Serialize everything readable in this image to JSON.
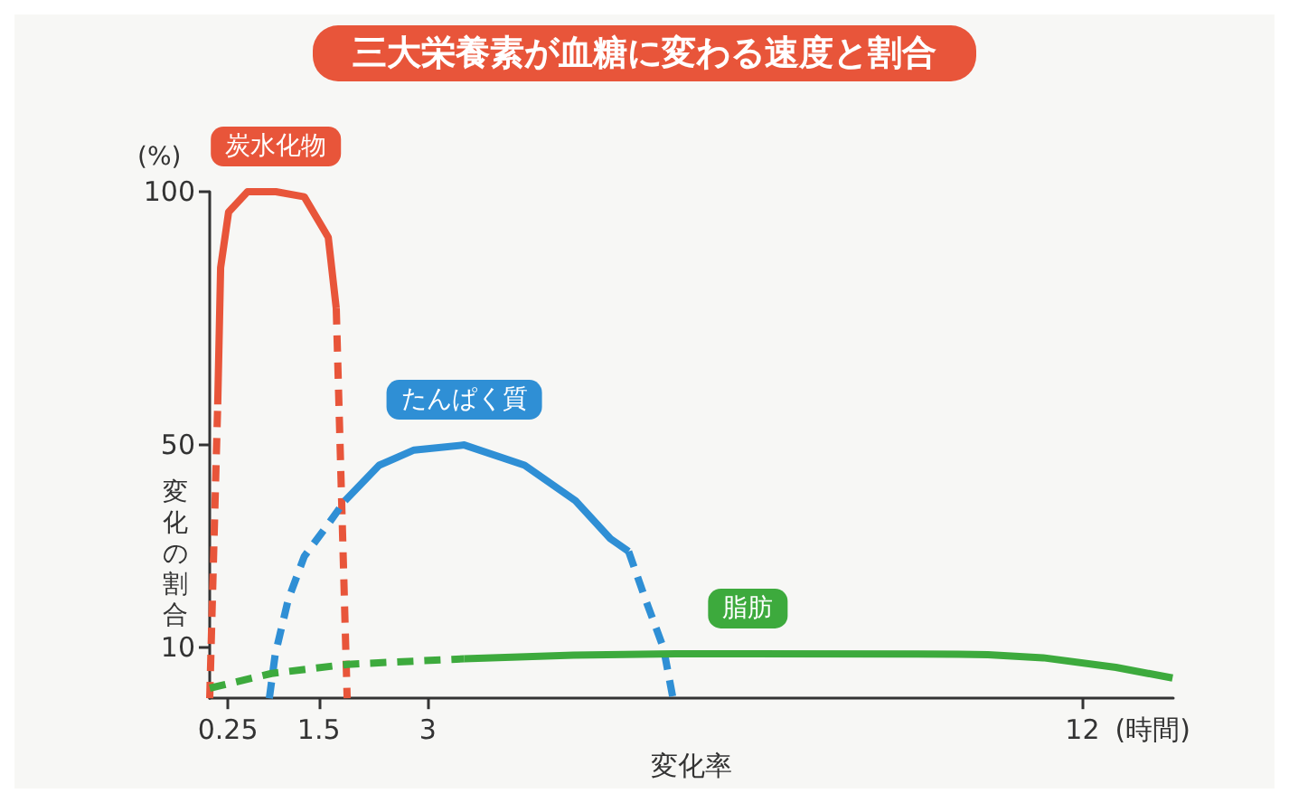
{
  "chart_data": {
    "type": "line",
    "title": "三大栄養素が血糖に変わる速度と割合",
    "xlabel": "変化率",
    "ylabel": "変化の割合",
    "annotations": [
      "(%)",
      "(時間)"
    ],
    "xlim": [
      0,
      13.25
    ],
    "xticks": [
      0.25,
      1.5,
      3,
      12
    ],
    "ylim": [
      0,
      100
    ],
    "yticks": [
      10,
      50,
      100
    ],
    "grid": false,
    "marker": "none",
    "series": [
      {
        "name": "炭水化物",
        "color": "#e8553a",
        "line_style": "solid",
        "x": [
          0.11,
          0.15,
          0.26,
          0.52,
          0.91,
          1.3,
          1.63,
          1.74
        ],
        "values": [
          58,
          85,
          96,
          100,
          100,
          99,
          91,
          77
        ]
      },
      {
        "color": "#e8553a",
        "line_style": "dashed",
        "x": [
          0,
          0.11
        ],
        "values": [
          0,
          58
        ]
      },
      {
        "color": "#e8553a",
        "line_style": "dashed",
        "x": [
          1.74,
          1.89
        ],
        "values": [
          77,
          0
        ]
      },
      {
        "name": "たんぱく質",
        "color": "#2f8fd5",
        "line_style": "solid",
        "x": [
          1.86,
          2.33,
          2.81,
          3.5,
          4.33,
          5.03,
          5.51,
          5.76
        ],
        "values": [
          39,
          46,
          49,
          50,
          46,
          39,
          31.5,
          29
        ]
      },
      {
        "color": "#2f8fd5",
        "line_style": "dashed",
        "x": [
          0.82,
          0.9,
          1.08,
          1.3,
          1.64,
          1.86
        ],
        "values": [
          0,
          8.6,
          19.5,
          28,
          34.6,
          39
        ]
      },
      {
        "color": "#2f8fd5",
        "line_style": "dashed",
        "x": [
          5.76,
          5.99,
          6.24,
          6.37
        ],
        "values": [
          29,
          19.6,
          9.9,
          0
        ]
      },
      {
        "color": "#3daa3d",
        "line_style": "dashed",
        "x": [
          0,
          0.85,
          1.89,
          3.5
        ],
        "values": [
          2,
          4.9,
          6.7,
          7.8
        ]
      },
      {
        "name": "脂肪",
        "color": "#3daa3d",
        "line_style": "solid",
        "x": [
          3.5,
          5,
          6.4,
          7.4,
          10.3,
          10.7,
          11.46,
          12.46,
          13.24
        ],
        "values": [
          7.8,
          8.5,
          8.8,
          8.8,
          8.7,
          8.6,
          8,
          6.1,
          4
        ]
      }
    ]
  }
}
